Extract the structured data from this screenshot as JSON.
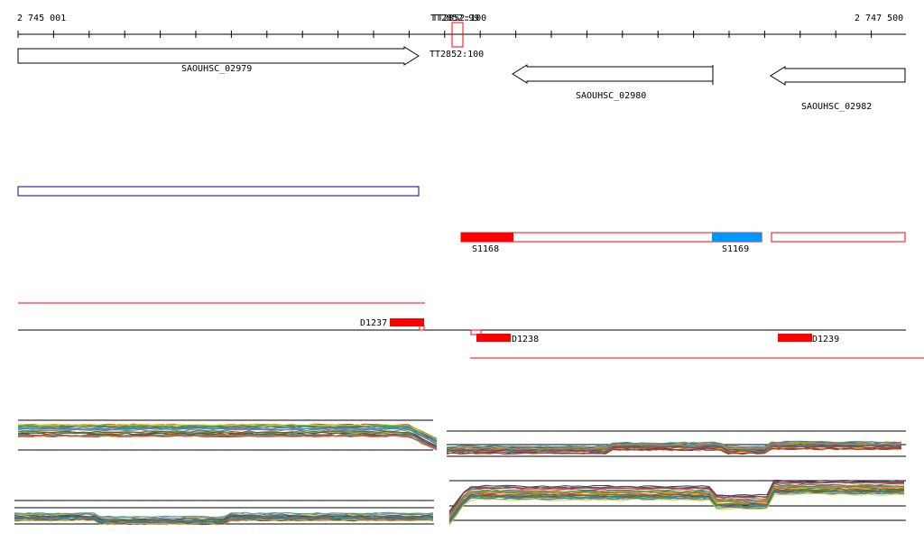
{
  "ruler": {
    "start_label": "2 745 001",
    "end_label": "2 747 500",
    "overlap_label_a": "TT2852:99",
    "overlap_label_b": "TT2852:100",
    "below_label": "TT2852:100"
  },
  "genes": [
    {
      "label": "SAOUHSC_02979",
      "strand": "+"
    },
    {
      "label": "SAOUHSC_02980",
      "strand": "-"
    },
    {
      "label": "SAOUHSC_02982",
      "strand": "-"
    }
  ],
  "segments": [
    {
      "label": "S1168",
      "color": "#ff0000"
    },
    {
      "label": "S1169",
      "color": "#0096ff"
    }
  ],
  "deletions": [
    {
      "label": "D1237"
    },
    {
      "label": "D1238"
    },
    {
      "label": "D1239"
    }
  ],
  "colors": {
    "outline_blue": "#0000aa",
    "red": "#ff0000",
    "blue_segment": "#0096ff"
  }
}
